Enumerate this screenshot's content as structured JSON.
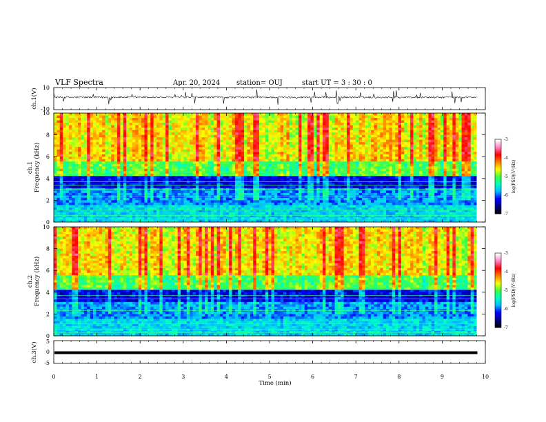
{
  "header": {
    "title": "VLF Spectra",
    "date": "Apr. 20, 2024",
    "station": "station= OUJ",
    "start_ut": "start  UT =   3 : 30 : 0"
  },
  "chart_data": [
    {
      "type": "line",
      "name": "ch.1 waveform",
      "ylabel": "ch.1(V)",
      "ylim": [
        -10,
        10
      ],
      "yticks": [
        "10",
        "-10"
      ],
      "xlim": [
        0,
        10
      ],
      "color": "#000000"
    },
    {
      "type": "heatmap",
      "name": "ch.1 spectrogram",
      "ylabel": "ch.1\nFrequency (kHz)",
      "ylim": [
        0,
        10
      ],
      "yticks": [
        "0",
        "2",
        "4",
        "6",
        "8",
        "10"
      ],
      "xlim": [
        0,
        10
      ],
      "data_end_min": 9.8,
      "colorbar": {
        "label": "log(PSD)(V²/Hz)",
        "range": [
          -7,
          -3
        ],
        "ticks": [
          "-3",
          "-4",
          "-5",
          "-6",
          "-7"
        ],
        "colors": [
          "#000000",
          "#00008b",
          "#0000ff",
          "#00bfff",
          "#00ffc0",
          "#40ff40",
          "#ffff00",
          "#ff8000",
          "#ff0000",
          "#ff80c0",
          "#ffffff"
        ]
      }
    },
    {
      "type": "heatmap",
      "name": "ch.2 spectrogram",
      "ylabel": "ch.2\nFrequency (kHz)",
      "ylim": [
        0,
        10
      ],
      "yticks": [
        "0",
        "2",
        "4",
        "6",
        "8",
        "10"
      ],
      "xlim": [
        0,
        10
      ],
      "data_end_min": 9.8,
      "colorbar": {
        "label": "log(PSD)(V²/Hz)",
        "range": [
          -7,
          -3
        ],
        "ticks": [
          "-3",
          "-4",
          "-5",
          "-6",
          "-7"
        ],
        "colors": [
          "#000000",
          "#00008b",
          "#0000ff",
          "#00bfff",
          "#00ffc0",
          "#40ff40",
          "#ffff00",
          "#ff8000",
          "#ff0000",
          "#ff80c0",
          "#ffffff"
        ]
      }
    },
    {
      "type": "line",
      "name": "ch.3 waveform",
      "ylabel": "ch.3(V)",
      "ylim": [
        -5,
        5
      ],
      "yticks": [
        "5",
        "0",
        "-5"
      ],
      "xlim": [
        0,
        10
      ],
      "level": -0.3,
      "color": "#000000"
    }
  ],
  "xaxis": {
    "label": "Time  (min)",
    "ticks": [
      "0",
      "1",
      "2",
      "3",
      "4",
      "5",
      "6",
      "7",
      "8",
      "9",
      "10"
    ]
  }
}
